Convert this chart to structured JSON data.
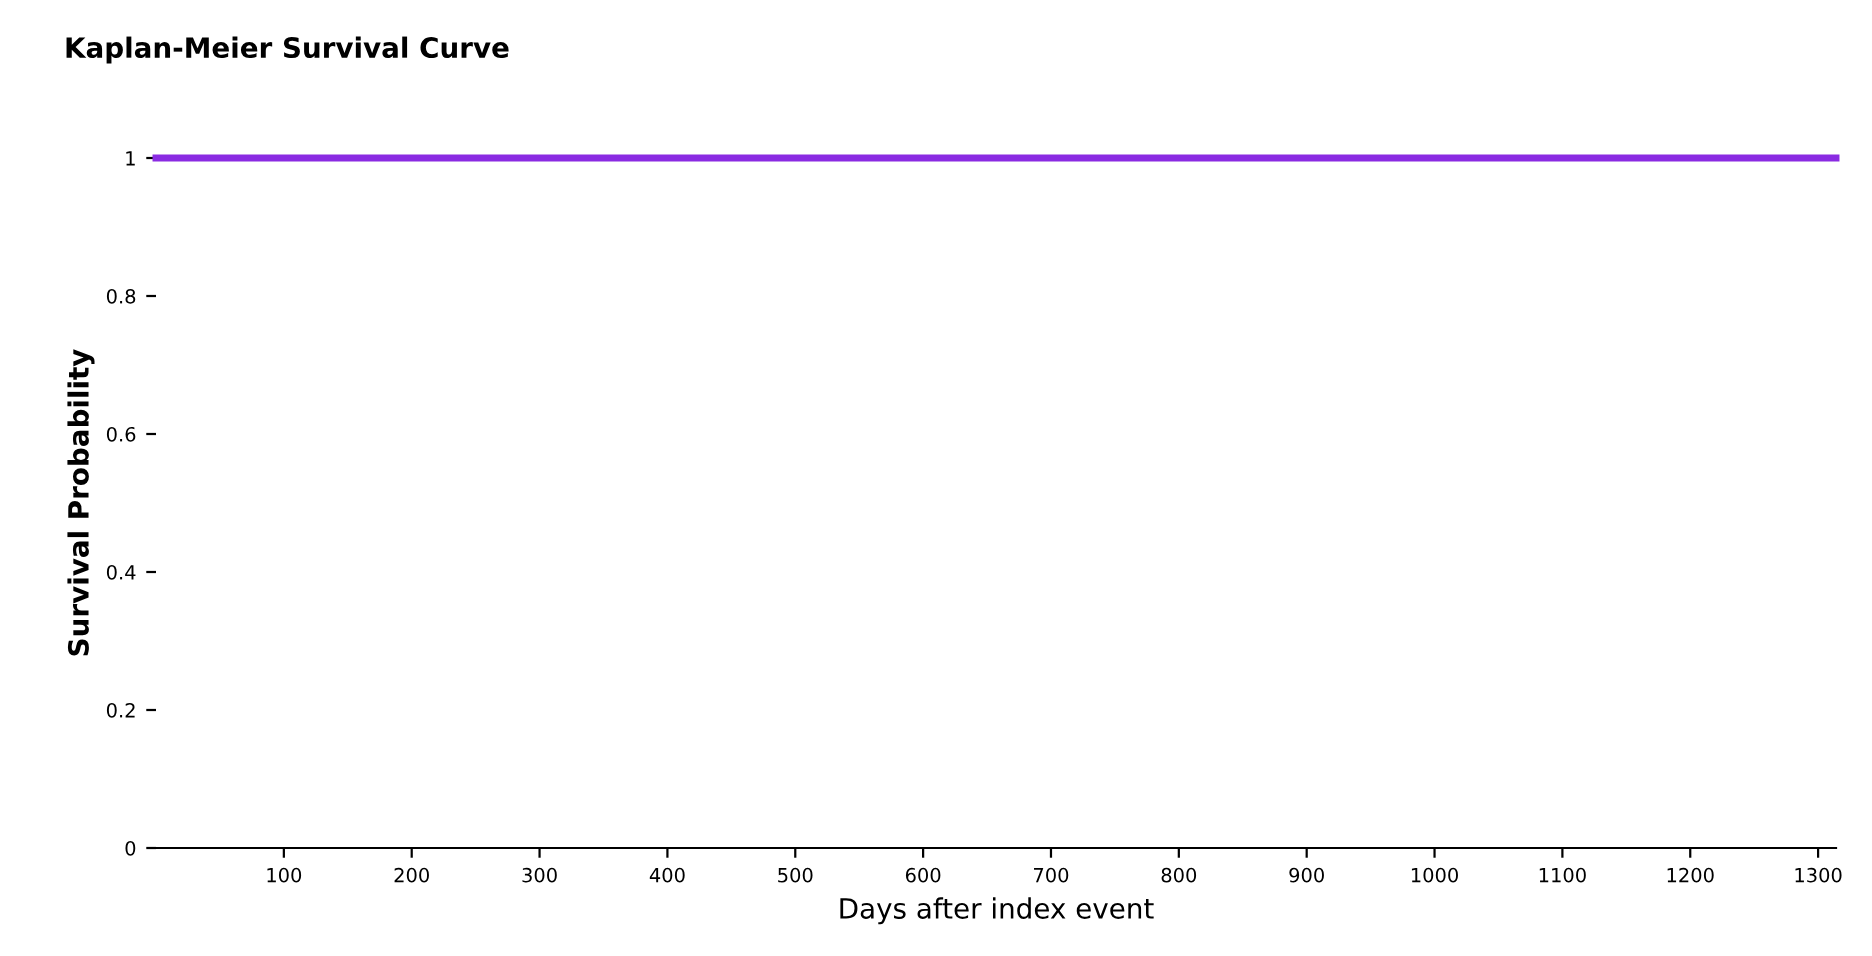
{
  "chart_data": {
    "type": "step",
    "title": "Kaplan-Meier Survival Curve",
    "xlabel": "Days after index event",
    "ylabel": "Survival Probability",
    "x": [
      0,
      1314
    ],
    "series": [
      {
        "color": "#8a2be2",
        "values": [
          1,
          1
        ]
      }
    ],
    "xlim": [
      0,
      1314
    ],
    "xticks": [
      100,
      200,
      300,
      400,
      500,
      600,
      700,
      800,
      900,
      1000,
      1100,
      1200,
      1300
    ],
    "ylim": [
      0,
      1
    ],
    "yticks": [
      0,
      0.2,
      0.4,
      0.6,
      0.8,
      1
    ],
    "grid": false,
    "legend": false,
    "marker": "none",
    "line_style": "solid"
  }
}
